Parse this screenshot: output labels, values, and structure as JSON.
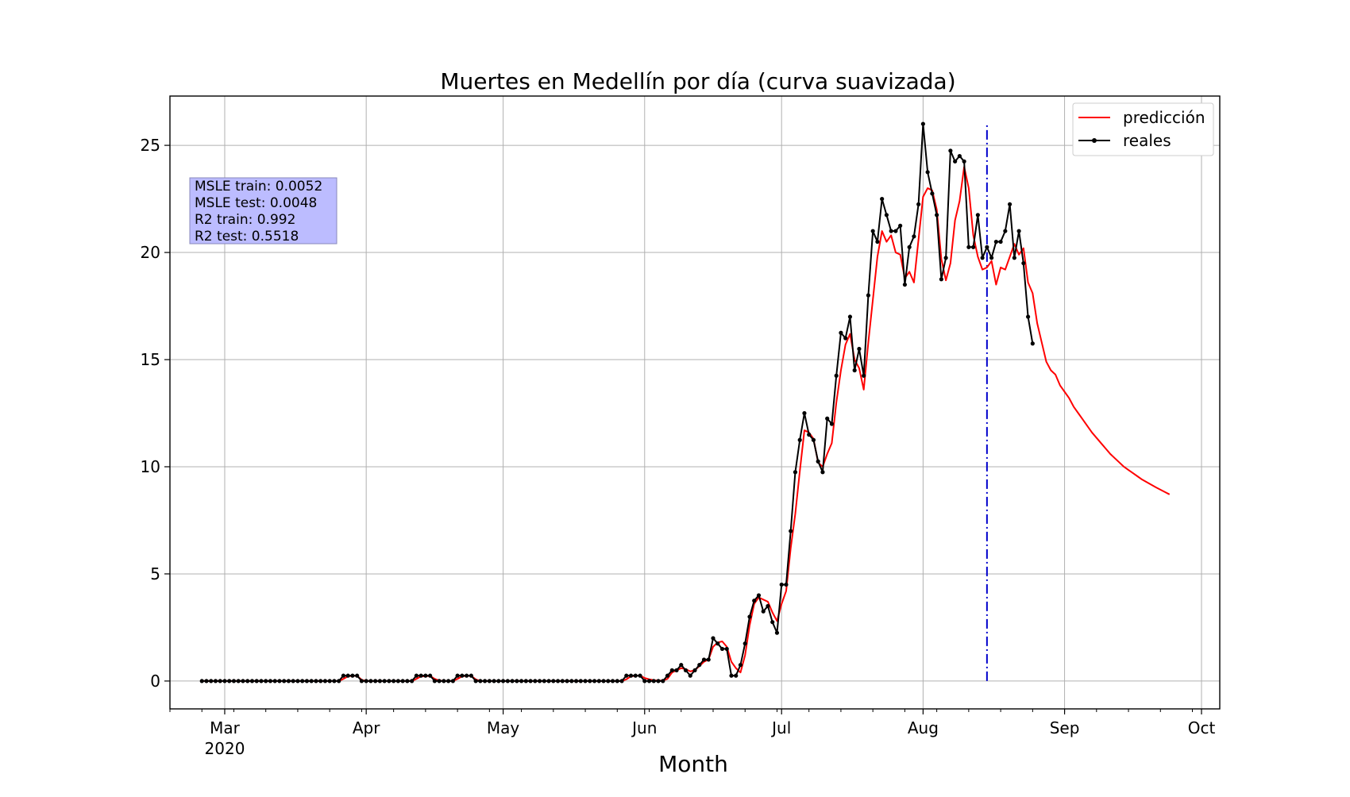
{
  "chart_data": {
    "type": "line",
    "title": "Muertes en Medellín por día (curva suavizada)",
    "xlabel": "Month",
    "ylabel": "",
    "ylim": [
      -1.3,
      27.3
    ],
    "xlim": [
      "2020-02-18",
      "2020-10-05"
    ],
    "grid": true,
    "legend_position": "top-right",
    "x_ticks": [
      {
        "date": "2020-03-01",
        "label": "Mar",
        "sublabel": "2020"
      },
      {
        "date": "2020-04-01",
        "label": "Apr",
        "sublabel": ""
      },
      {
        "date": "2020-05-01",
        "label": "May",
        "sublabel": ""
      },
      {
        "date": "2020-06-01",
        "label": "Jun",
        "sublabel": ""
      },
      {
        "date": "2020-07-01",
        "label": "Jul",
        "sublabel": ""
      },
      {
        "date": "2020-08-01",
        "label": "Aug",
        "sublabel": ""
      },
      {
        "date": "2020-09-01",
        "label": "Sep",
        "sublabel": ""
      },
      {
        "date": "2020-10-01",
        "label": "Oct",
        "sublabel": ""
      }
    ],
    "y_ticks": [
      0,
      5,
      10,
      15,
      20,
      25
    ],
    "split_line": {
      "date": "2020-08-15",
      "color": "#0000cc",
      "ymin": 0,
      "ymax": 26
    },
    "metrics_box": [
      "MSLE train: 0.0052",
      "MSLE test: 0.0048",
      "R2 train: 0.992",
      "R2 test: 0.5518"
    ],
    "series": [
      {
        "name": "predicción",
        "color": "#ff0000",
        "marker": false,
        "start": "2020-02-25",
        "values": [
          0,
          0,
          0,
          0,
          0,
          0,
          0,
          0,
          0,
          0,
          0,
          0,
          0,
          0,
          0,
          0,
          0,
          0,
          0,
          0,
          0,
          0,
          0,
          0,
          0,
          0,
          0,
          0,
          0,
          0,
          0,
          0.1,
          0.22,
          0.24,
          0.24,
          0.06,
          0,
          0,
          0,
          0,
          0,
          0,
          0,
          0,
          0,
          0,
          0,
          0.1,
          0.22,
          0.22,
          0.24,
          0.1,
          0.02,
          0,
          0,
          0,
          0.1,
          0.22,
          0.24,
          0.24,
          0.08,
          0,
          0,
          0,
          0,
          0,
          0,
          0,
          0,
          0,
          0,
          0,
          0,
          0,
          0,
          0,
          0,
          0,
          0,
          0,
          0,
          0,
          0,
          0,
          0,
          0,
          0,
          0,
          0,
          0,
          0,
          0,
          0,
          0.08,
          0.22,
          0.24,
          0.26,
          0.14,
          0.08,
          0.04,
          0.02,
          0.02,
          0.1,
          0.4,
          0.5,
          0.6,
          0.55,
          0.45,
          0.5,
          0.7,
          0.9,
          1.0,
          1.6,
          1.8,
          1.85,
          1.6,
          0.9,
          0.6,
          0.4,
          1.2,
          2.6,
          3.6,
          3.9,
          3.8,
          3.7,
          3.2,
          2.8,
          3.6,
          4.2,
          6.2,
          7.8,
          9.8,
          11.7,
          11.6,
          11.3,
          10.2,
          10.0,
          10.6,
          11.1,
          13.0,
          14.5,
          15.7,
          16.2,
          15.0,
          14.6,
          13.6,
          15.8,
          17.8,
          19.8,
          21.0,
          20.5,
          20.8,
          20.0,
          19.9,
          18.8,
          19.1,
          18.6,
          20.6,
          22.6,
          23.0,
          22.9,
          22.0,
          19.7,
          18.7,
          19.5,
          21.5,
          22.4,
          24.0,
          23.0,
          20.8,
          19.8,
          19.2,
          19.3,
          19.6,
          18.5,
          19.3,
          19.2,
          19.8,
          20.4,
          19.9,
          20.2,
          18.6,
          18.1,
          16.7,
          15.8,
          14.9,
          14.5,
          14.3,
          13.8,
          13.5,
          13.2,
          12.8,
          12.5,
          12.2,
          11.9,
          11.6,
          11.35,
          11.1,
          10.85,
          10.6,
          10.4,
          10.2,
          10.0,
          9.85,
          9.7,
          9.55,
          9.4,
          9.28,
          9.16,
          9.04,
          8.93,
          8.82,
          8.71
        ]
      },
      {
        "name": "reales",
        "color": "#000000",
        "marker": true,
        "start": "2020-02-25",
        "values": [
          0,
          0,
          0,
          0,
          0,
          0,
          0,
          0,
          0,
          0,
          0,
          0,
          0,
          0,
          0,
          0,
          0,
          0,
          0,
          0,
          0,
          0,
          0,
          0,
          0,
          0,
          0,
          0,
          0,
          0,
          0,
          0.25,
          0.25,
          0.25,
          0.25,
          0,
          0,
          0,
          0,
          0,
          0,
          0,
          0,
          0,
          0,
          0,
          0,
          0.25,
          0.25,
          0.25,
          0.25,
          0,
          0,
          0,
          0,
          0,
          0.25,
          0.25,
          0.25,
          0.25,
          0,
          0,
          0,
          0,
          0,
          0,
          0,
          0,
          0,
          0,
          0,
          0,
          0,
          0,
          0,
          0,
          0,
          0,
          0,
          0,
          0,
          0,
          0,
          0,
          0,
          0,
          0,
          0,
          0,
          0,
          0,
          0,
          0,
          0.25,
          0.25,
          0.25,
          0.25,
          0,
          0,
          0,
          0,
          0,
          0.25,
          0.5,
          0.5,
          0.75,
          0.5,
          0.25,
          0.5,
          0.75,
          1.0,
          1.0,
          2.0,
          1.75,
          1.5,
          1.5,
          0.25,
          0.25,
          0.75,
          1.75,
          3.0,
          3.75,
          4.0,
          3.25,
          3.5,
          2.75,
          2.25,
          4.5,
          4.5,
          7.0,
          9.75,
          11.25,
          12.5,
          11.5,
          11.25,
          10.25,
          9.75,
          12.25,
          12.0,
          14.25,
          16.25,
          16.0,
          17.0,
          14.5,
          15.5,
          14.25,
          18.0,
          21.0,
          20.5,
          22.5,
          21.75,
          21.0,
          21.0,
          21.25,
          18.5,
          20.25,
          20.75,
          22.25,
          26.0,
          23.75,
          22.75,
          21.75,
          18.75,
          19.75,
          24.75,
          24.25,
          24.5,
          24.25,
          20.25,
          20.25,
          21.75,
          19.75,
          20.25,
          19.75,
          20.5,
          20.5,
          21.0,
          22.25,
          19.75,
          21.0,
          19.5,
          17.0,
          15.75
        ]
      }
    ]
  }
}
